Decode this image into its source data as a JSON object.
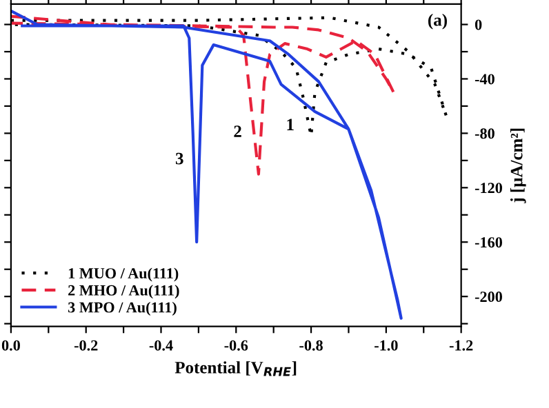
{
  "chart_data": {
    "type": "line",
    "xlabel": "Potential [V$_{RHE}$]",
    "ylabel": "j [μA/cm²]",
    "xlim": [
      0,
      -1.2
    ],
    "ylim": [
      -222,
      15
    ],
    "xticks": [
      {
        "value": 0,
        "label": "0.0"
      },
      {
        "value": -0.1,
        "label": null
      },
      {
        "value": -0.2,
        "label": "-0.2"
      },
      {
        "value": -0.3,
        "label": null
      },
      {
        "value": -0.4,
        "label": "-0.4"
      },
      {
        "value": -0.5,
        "label": null
      },
      {
        "value": -0.6,
        "label": "-0.6"
      },
      {
        "value": -0.7,
        "label": null
      },
      {
        "value": -0.8,
        "label": "-0.8"
      },
      {
        "value": -0.9,
        "label": null
      },
      {
        "value": -1.0,
        "label": "-1.0"
      },
      {
        "value": -1.1,
        "label": null
      },
      {
        "value": -1.2,
        "label": "-1.2"
      }
    ],
    "yticks": [
      0,
      {
        "value": -20,
        "label": null
      },
      -40,
      {
        "value": -60,
        "label": null
      },
      -80,
      {
        "value": -100,
        "label": null
      },
      -120,
      {
        "value": -140,
        "label": null
      },
      -160,
      {
        "value": -180,
        "label": null
      },
      -200,
      {
        "value": -220,
        "label": null
      }
    ],
    "grid": false,
    "legend": "bottom left",
    "annotations": [
      "(a)",
      {
        "text": "1",
        "x": -0.78,
        "y": -55
      },
      {
        "text": "2",
        "x": -0.64,
        "y": -60
      },
      {
        "text": "3",
        "x": -0.485,
        "y": -80
      }
    ],
    "series": [
      {
        "name": "1 MUO / Au(111)",
        "color": "#000000",
        "line_style": "dotted",
        "x": [
          0,
          -0.5,
          -0.85,
          -0.98,
          -1.06,
          -1.13,
          -1.16,
          -1.12,
          -1.06,
          -0.98,
          -0.9,
          -0.84,
          -0.81,
          -0.8,
          -0.78,
          -0.76,
          -0.72,
          -0.66,
          -0.5,
          0
        ],
        "values": [
          3,
          3,
          5,
          -2,
          -20,
          -44,
          -67,
          -32,
          -22,
          -18,
          -22,
          -28,
          -50,
          -82,
          -55,
          -32,
          -20,
          -8,
          -1,
          0
        ]
      },
      {
        "name": "2 MHO / Au(111)",
        "color": "#e8233c",
        "line_style": "dashed",
        "x": [
          0,
          -0.3,
          -0.6,
          -0.62,
          -0.64,
          -0.66,
          -0.675,
          -0.69,
          -0.73,
          -0.79,
          -0.84,
          -0.88,
          -0.92,
          -0.97,
          -1.02,
          -1.0,
          -0.95,
          -0.9,
          -0.82,
          -0.75,
          -0.7,
          -0.5,
          0
        ],
        "values": [
          6,
          -1,
          -2,
          -8,
          -60,
          -110,
          -42,
          -22,
          -14,
          -18,
          -24,
          -18,
          -12,
          -22,
          -50,
          -40,
          -20,
          -10,
          -4,
          -2,
          -2,
          -1,
          1
        ]
      },
      {
        "name": "3 MPO / Au(111)",
        "color": "#2240e0",
        "line_style": "solid",
        "x": [
          0,
          -0.07,
          -0.46,
          -0.69,
          -0.74,
          -0.82,
          -0.9,
          -0.98,
          -1.04,
          -1.03,
          -0.96,
          -0.9,
          -0.81,
          -0.72,
          -0.69,
          -0.54,
          -0.51,
          -0.495,
          -0.485,
          -0.475,
          -0.46,
          -0.3,
          -0.03
        ],
        "values": [
          10,
          0,
          -2,
          -12,
          -22,
          -42,
          -77,
          -142,
          -216,
          -202,
          -122,
          -77,
          -64,
          -44,
          -27,
          -15,
          -30,
          -160,
          -80,
          -10,
          -1,
          -1,
          -1
        ]
      }
    ]
  }
}
